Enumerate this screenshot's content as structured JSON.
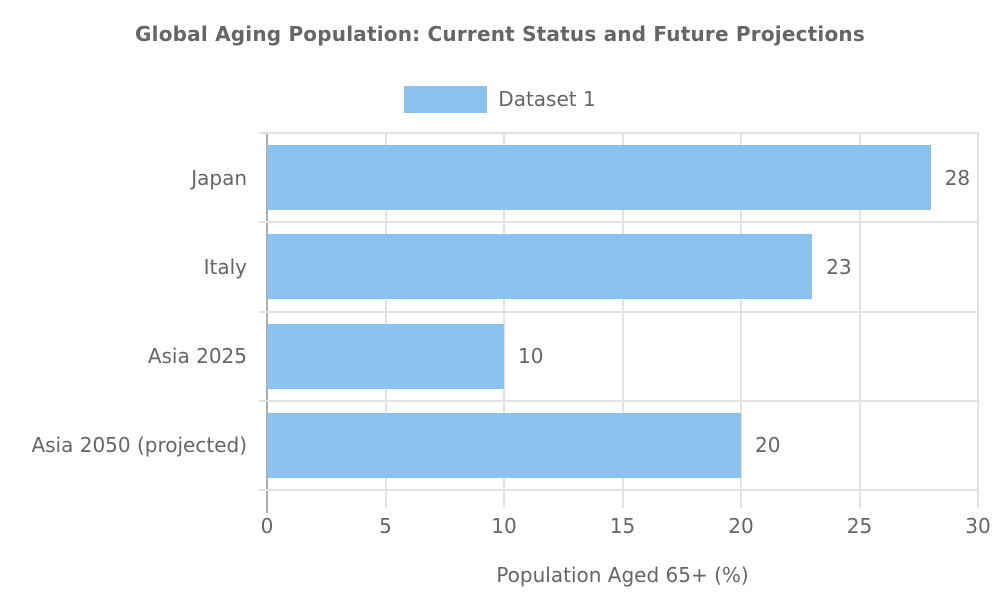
{
  "chart_data": {
    "type": "bar",
    "orientation": "horizontal",
    "title": "Global Aging Population: Current Status and Future Projections",
    "categories": [
      "Japan",
      "Italy",
      "Asia 2025",
      "Asia 2050 (projected)"
    ],
    "series": [
      {
        "name": "Dataset 1",
        "values": [
          28,
          23,
          10,
          20
        ]
      }
    ],
    "value_labels": [
      "28",
      "23",
      "10",
      "20"
    ],
    "xlabel": "Population Aged 65+ (%)",
    "ylabel": "",
    "xlim": [
      0,
      30
    ],
    "xticks": [
      0,
      5,
      10,
      15,
      20,
      25,
      30
    ],
    "grid": true,
    "legend_position": "top-center",
    "colors": {
      "bar": "#8AC3EF",
      "text": "#666666",
      "title": "#666666",
      "grid": "#E2E2E2",
      "axis_line": "#ACACAC",
      "background": "#FFFFFF"
    }
  }
}
